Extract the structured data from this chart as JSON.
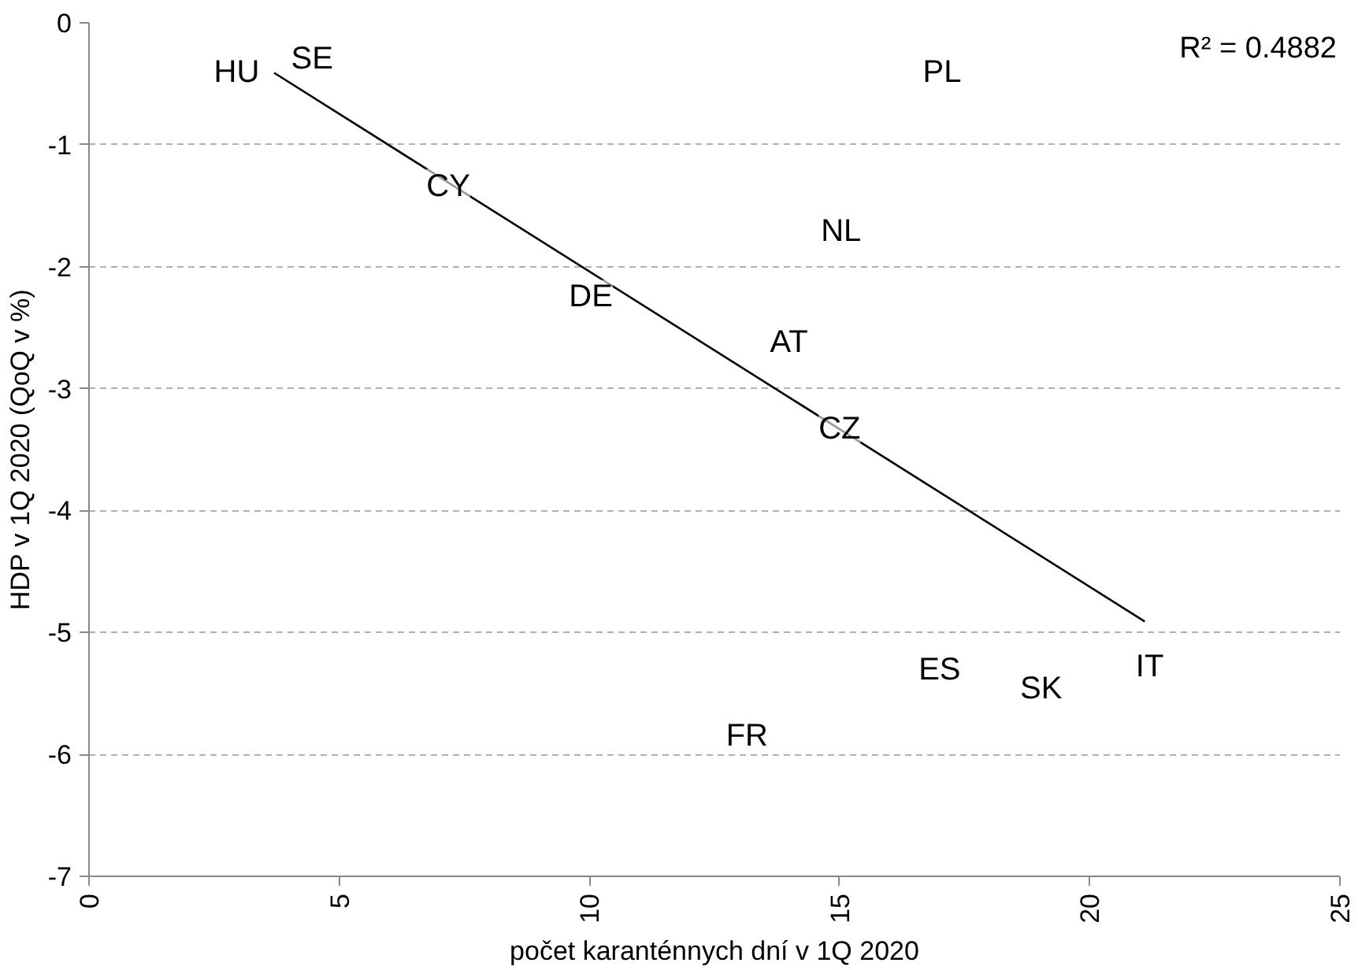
{
  "chart_data": {
    "type": "line",
    "xlabel": "počet karanténnych dní v 1Q 2020",
    "ylabel": "HDP v 1Q 2020 (QoQ v %)",
    "series": [
      {
        "color": "#000000",
        "x": [
          3.7,
          21.1
        ],
        "values": [
          -0.41,
          -4.91
        ]
      }
    ],
    "annotations": [
      {
        "text": "HU",
        "x": 2.95,
        "y": -0.41
      },
      {
        "text": "SE",
        "x": 4.46,
        "y": -0.3
      },
      {
        "text": "CY",
        "x": 7.18,
        "y": -1.34
      },
      {
        "text": "DE",
        "x": 10.03,
        "y": -2.25
      },
      {
        "text": "AT",
        "x": 13.99,
        "y": -2.62
      },
      {
        "text": "NL",
        "x": 15.03,
        "y": -1.71
      },
      {
        "text": "CZ",
        "x": 15.0,
        "y": -3.33
      },
      {
        "text": "PL",
        "x": 17.05,
        "y": -0.41
      },
      {
        "text": "ES",
        "x": 17.0,
        "y": -5.31
      },
      {
        "text": "SK",
        "x": 19.03,
        "y": -5.46
      },
      {
        "text": "IT",
        "x": 21.2,
        "y": -5.28
      },
      {
        "text": "FR",
        "x": 13.15,
        "y": -5.85
      },
      "R² = 0.4882"
    ],
    "xlim": [
      0,
      25
    ],
    "xticks": [
      0,
      5,
      10,
      15,
      20,
      25
    ],
    "ylim": [
      -7,
      0
    ],
    "yticks": [
      -7,
      -6,
      -5,
      -4,
      -3,
      -2,
      -1,
      0
    ],
    "grid": "y"
  }
}
